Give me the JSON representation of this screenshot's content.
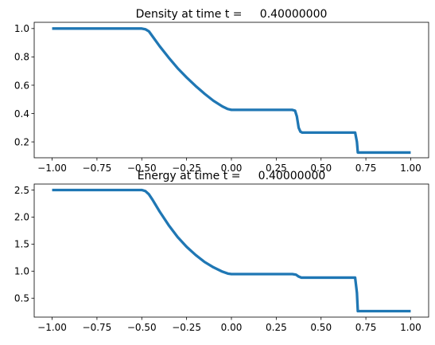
{
  "chart_data": [
    {
      "type": "line",
      "title": "Density at time t =     0.40000000",
      "xlabel": "",
      "ylabel": "",
      "xlim": [
        -1.1,
        1.1
      ],
      "ylim": [
        0.088,
        1.044
      ],
      "xticks": [
        -1.0,
        -0.75,
        -0.5,
        -0.25,
        0.0,
        0.25,
        0.5,
        0.75,
        1.0
      ],
      "xtick_labels": [
        "−1.00",
        "−0.75",
        "−0.50",
        "−0.25",
        "0.00",
        "0.25",
        "0.50",
        "0.75",
        "1.00"
      ],
      "yticks": [
        0.2,
        0.4,
        0.6,
        0.8,
        1.0
      ],
      "ytick_labels": [
        "0.2",
        "0.4",
        "0.6",
        "0.8",
        "1.0"
      ],
      "grid": false,
      "series": [
        {
          "color": "#1f77b4",
          "x": [
            -1.0,
            -0.5,
            -0.48,
            -0.46,
            -0.44,
            -0.4,
            -0.35,
            -0.3,
            -0.25,
            -0.2,
            -0.15,
            -0.1,
            -0.05,
            -0.02,
            0.0,
            0.02,
            0.34,
            0.355,
            0.365,
            0.375,
            0.385,
            0.395,
            0.69,
            0.7,
            0.705,
            1.0
          ],
          "y": [
            1.0,
            1.0,
            0.995,
            0.98,
            0.945,
            0.875,
            0.795,
            0.72,
            0.655,
            0.595,
            0.54,
            0.49,
            0.45,
            0.432,
            0.426,
            0.426,
            0.426,
            0.42,
            0.38,
            0.3,
            0.272,
            0.266,
            0.266,
            0.2,
            0.125,
            0.125
          ]
        }
      ]
    },
    {
      "type": "line",
      "title": "Energy at time t =     0.40000000",
      "xlabel": "",
      "ylabel": "",
      "xlim": [
        -1.1,
        1.1
      ],
      "ylim": [
        0.15,
        2.61
      ],
      "xticks": [
        -1.0,
        -0.75,
        -0.5,
        -0.25,
        0.0,
        0.25,
        0.5,
        0.75,
        1.0
      ],
      "xtick_labels": [
        "−1.00",
        "−0.75",
        "−0.50",
        "−0.25",
        "0.00",
        "0.25",
        "0.50",
        "0.75",
        "1.00"
      ],
      "yticks": [
        0.5,
        1.0,
        1.5,
        2.0,
        2.5
      ],
      "ytick_labels": [
        "0.5",
        "1.0",
        "1.5",
        "2.0",
        "2.5"
      ],
      "grid": false,
      "series": [
        {
          "color": "#1f77b4",
          "x": [
            -1.0,
            -0.5,
            -0.48,
            -0.46,
            -0.44,
            -0.4,
            -0.35,
            -0.3,
            -0.25,
            -0.2,
            -0.15,
            -0.1,
            -0.05,
            -0.02,
            0.0,
            0.02,
            0.34,
            0.36,
            0.375,
            0.39,
            0.69,
            0.7,
            0.705,
            1.0
          ],
          "y": [
            2.5,
            2.5,
            2.48,
            2.42,
            2.32,
            2.1,
            1.85,
            1.63,
            1.45,
            1.3,
            1.17,
            1.07,
            0.99,
            0.955,
            0.945,
            0.945,
            0.945,
            0.935,
            0.9,
            0.88,
            0.88,
            0.6,
            0.26,
            0.26
          ]
        }
      ]
    }
  ]
}
